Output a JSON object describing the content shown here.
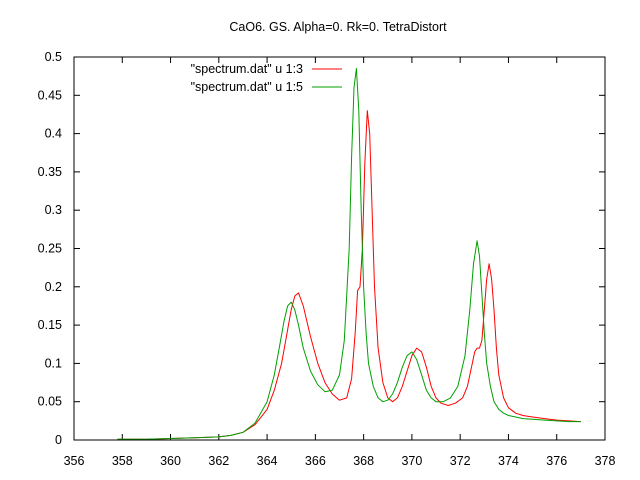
{
  "chart_data": {
    "type": "line",
    "title": "CaO6. GS. Alpha=0. Rk=0. TetraDistort",
    "xlabel": "",
    "ylabel": "",
    "xlim": [
      356,
      378
    ],
    "ylim": [
      0,
      0.5
    ],
    "xticks": [
      "356",
      "358",
      "360",
      "362",
      "364",
      "366",
      "368",
      "370",
      "372",
      "374",
      "376",
      "378"
    ],
    "yticks": [
      "0",
      "0.05",
      "0.1",
      "0.15",
      "0.2",
      "0.25",
      "0.3",
      "0.35",
      "0.4",
      "0.45",
      "0.5"
    ],
    "grid": false,
    "legend_position": "top-left",
    "series": [
      {
        "name": "\"spectrum.dat\" u 1:3",
        "color": "#ff0000",
        "x": [
          357.8,
          359,
          360,
          361,
          362,
          362.5,
          363,
          363.5,
          364,
          364.3,
          364.6,
          364.8,
          365.0,
          365.15,
          365.3,
          365.5,
          365.8,
          366.1,
          366.4,
          366.7,
          367.0,
          367.3,
          367.5,
          367.65,
          367.75,
          367.85,
          367.95,
          368.05,
          368.15,
          368.25,
          368.35,
          368.45,
          368.6,
          368.8,
          369.0,
          369.2,
          369.4,
          369.6,
          369.8,
          370.0,
          370.2,
          370.4,
          370.6,
          370.8,
          371.0,
          371.2,
          371.5,
          371.8,
          372.1,
          372.3,
          372.5,
          372.6,
          372.7,
          372.8,
          372.9,
          373.0,
          373.1,
          373.2,
          373.3,
          373.4,
          373.5,
          373.6,
          373.8,
          374.0,
          374.3,
          374.6,
          375.0,
          375.5,
          376.0,
          376.5,
          377.0
        ],
        "y": [
          0.001,
          0.001,
          0.002,
          0.003,
          0.004,
          0.006,
          0.01,
          0.02,
          0.04,
          0.065,
          0.1,
          0.135,
          0.17,
          0.188,
          0.192,
          0.175,
          0.135,
          0.1,
          0.075,
          0.06,
          0.052,
          0.055,
          0.08,
          0.14,
          0.195,
          0.2,
          0.25,
          0.36,
          0.43,
          0.4,
          0.3,
          0.2,
          0.12,
          0.075,
          0.055,
          0.05,
          0.055,
          0.07,
          0.09,
          0.11,
          0.12,
          0.115,
          0.095,
          0.07,
          0.055,
          0.048,
          0.045,
          0.048,
          0.055,
          0.07,
          0.1,
          0.115,
          0.12,
          0.12,
          0.13,
          0.17,
          0.21,
          0.23,
          0.21,
          0.17,
          0.12,
          0.085,
          0.055,
          0.042,
          0.035,
          0.032,
          0.03,
          0.028,
          0.026,
          0.025,
          0.024
        ]
      },
      {
        "name": "\"spectrum.dat\" u 1:5",
        "color": "#00a000",
        "x": [
          357.8,
          359,
          360,
          361,
          362,
          362.5,
          363,
          363.5,
          364,
          364.3,
          364.5,
          364.7,
          364.85,
          365.0,
          365.15,
          365.3,
          365.5,
          365.8,
          366.1,
          366.4,
          366.7,
          367.0,
          367.2,
          367.4,
          367.5,
          367.6,
          367.7,
          367.8,
          367.9,
          368.0,
          368.1,
          368.2,
          368.4,
          368.6,
          368.8,
          369.0,
          369.2,
          369.4,
          369.6,
          369.8,
          370.0,
          370.2,
          370.4,
          370.6,
          370.8,
          371.0,
          371.3,
          371.6,
          371.9,
          372.2,
          372.4,
          372.55,
          372.7,
          372.8,
          372.9,
          373.0,
          373.1,
          373.25,
          373.4,
          373.6,
          373.8,
          374.0,
          374.3,
          374.6,
          375.0,
          375.5,
          376.0,
          376.5,
          377.0
        ],
        "y": [
          0.001,
          0.001,
          0.002,
          0.003,
          0.004,
          0.006,
          0.01,
          0.022,
          0.05,
          0.085,
          0.12,
          0.155,
          0.175,
          0.18,
          0.17,
          0.15,
          0.12,
          0.09,
          0.072,
          0.063,
          0.065,
          0.085,
          0.13,
          0.25,
          0.37,
          0.46,
          0.485,
          0.43,
          0.3,
          0.2,
          0.14,
          0.1,
          0.07,
          0.055,
          0.05,
          0.052,
          0.06,
          0.075,
          0.095,
          0.11,
          0.115,
          0.105,
          0.085,
          0.065,
          0.055,
          0.05,
          0.05,
          0.055,
          0.07,
          0.11,
          0.17,
          0.23,
          0.26,
          0.24,
          0.19,
          0.14,
          0.1,
          0.07,
          0.05,
          0.04,
          0.035,
          0.032,
          0.03,
          0.028,
          0.027,
          0.026,
          0.025,
          0.024,
          0.024
        ]
      }
    ]
  }
}
